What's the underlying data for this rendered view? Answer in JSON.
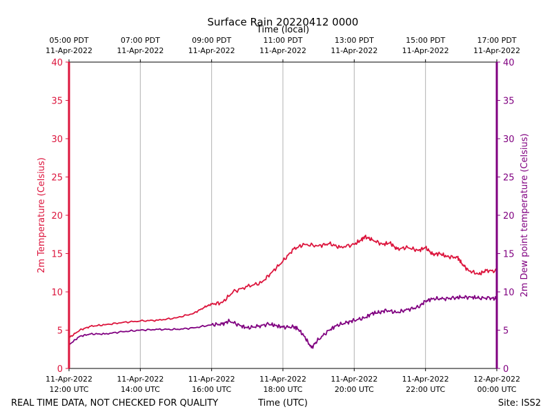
{
  "chart_data": {
    "type": "line",
    "title": "Surface Rain 20220412 0000",
    "xlabel_bottom": "Time (UTC)",
    "xlabel_top": "Time (local)",
    "ylabel_left": "2m Temperature (Celsius)",
    "ylabel_right": "2m Dew point temperature (Celsius)",
    "ylim_left": [
      0,
      40
    ],
    "ylim_right": [
      0,
      40
    ],
    "x_range_hours": [
      12,
      24
    ],
    "y_ticks": [
      "0",
      "5",
      "10",
      "15",
      "20",
      "25",
      "30",
      "35",
      "40"
    ],
    "bottom_ticks": [
      {
        "hour": 12,
        "line1": "11-Apr-2022",
        "line2": "12:00 UTC"
      },
      {
        "hour": 14,
        "line1": "11-Apr-2022",
        "line2": "14:00 UTC"
      },
      {
        "hour": 16,
        "line1": "11-Apr-2022",
        "line2": "16:00 UTC"
      },
      {
        "hour": 18,
        "line1": "11-Apr-2022",
        "line2": "18:00 UTC"
      },
      {
        "hour": 20,
        "line1": "11-Apr-2022",
        "line2": "20:00 UTC"
      },
      {
        "hour": 22,
        "line1": "11-Apr-2022",
        "line2": "22:00 UTC"
      },
      {
        "hour": 24,
        "line1": "12-Apr-2022",
        "line2": "00:00 UTC"
      }
    ],
    "top_ticks": [
      {
        "hour": 12,
        "line1": "05:00 PDT",
        "line2": "11-Apr-2022"
      },
      {
        "hour": 14,
        "line1": "07:00 PDT",
        "line2": "11-Apr-2022"
      },
      {
        "hour": 16,
        "line1": "09:00 PDT",
        "line2": "11-Apr-2022"
      },
      {
        "hour": 18,
        "line1": "11:00 PDT",
        "line2": "11-Apr-2022"
      },
      {
        "hour": 20,
        "line1": "13:00 PDT",
        "line2": "11-Apr-2022"
      },
      {
        "hour": 22,
        "line1": "15:00 PDT",
        "line2": "11-Apr-2022"
      },
      {
        "hour": 24,
        "line1": "17:00 PDT",
        "line2": "11-Apr-2022"
      }
    ],
    "grid": "vertical",
    "series": [
      {
        "name": "2m Temperature",
        "axis": "left",
        "color": "#dc143c",
        "points": [
          [
            12.0,
            4.0
          ],
          [
            12.3,
            5.0
          ],
          [
            12.6,
            5.5
          ],
          [
            13.0,
            5.7
          ],
          [
            13.5,
            6.0
          ],
          [
            14.0,
            6.2
          ],
          [
            14.5,
            6.3
          ],
          [
            15.0,
            6.6
          ],
          [
            15.5,
            7.2
          ],
          [
            15.8,
            8.0
          ],
          [
            16.0,
            8.4
          ],
          [
            16.3,
            8.6
          ],
          [
            16.6,
            10.0
          ],
          [
            17.0,
            10.7
          ],
          [
            17.4,
            11.2
          ],
          [
            17.7,
            12.6
          ],
          [
            18.0,
            14.0
          ],
          [
            18.3,
            15.6
          ],
          [
            18.6,
            16.2
          ],
          [
            19.0,
            16.0
          ],
          [
            19.3,
            16.3
          ],
          [
            19.6,
            15.8
          ],
          [
            20.0,
            16.2
          ],
          [
            20.2,
            16.8
          ],
          [
            20.3,
            17.2
          ],
          [
            20.5,
            16.8
          ],
          [
            20.8,
            16.2
          ],
          [
            21.0,
            16.4
          ],
          [
            21.2,
            15.6
          ],
          [
            21.5,
            15.8
          ],
          [
            21.8,
            15.4
          ],
          [
            22.0,
            15.8
          ],
          [
            22.2,
            14.9
          ],
          [
            22.4,
            15.0
          ],
          [
            22.6,
            14.6
          ],
          [
            22.9,
            14.5
          ],
          [
            23.0,
            13.8
          ],
          [
            23.2,
            12.8
          ],
          [
            23.5,
            12.3
          ],
          [
            23.7,
            12.8
          ],
          [
            24.0,
            12.7
          ]
        ]
      },
      {
        "name": "2m Dew point temperature",
        "axis": "right",
        "color": "#800080",
        "points": [
          [
            12.0,
            3.1
          ],
          [
            12.3,
            4.2
          ],
          [
            12.6,
            4.5
          ],
          [
            13.0,
            4.5
          ],
          [
            13.5,
            4.8
          ],
          [
            14.0,
            5.0
          ],
          [
            14.5,
            5.1
          ],
          [
            15.0,
            5.1
          ],
          [
            15.5,
            5.3
          ],
          [
            16.0,
            5.7
          ],
          [
            16.3,
            5.8
          ],
          [
            16.5,
            6.2
          ],
          [
            16.8,
            5.6
          ],
          [
            17.0,
            5.3
          ],
          [
            17.3,
            5.5
          ],
          [
            17.6,
            5.8
          ],
          [
            17.8,
            5.6
          ],
          [
            18.0,
            5.4
          ],
          [
            18.3,
            5.4
          ],
          [
            18.4,
            5.3
          ],
          [
            18.6,
            4.2
          ],
          [
            18.8,
            2.7
          ],
          [
            19.0,
            3.8
          ],
          [
            19.3,
            5.0
          ],
          [
            19.5,
            5.6
          ],
          [
            19.8,
            6.0
          ],
          [
            20.0,
            6.3
          ],
          [
            20.3,
            6.6
          ],
          [
            20.5,
            7.2
          ],
          [
            20.7,
            7.3
          ],
          [
            20.9,
            7.6
          ],
          [
            21.2,
            7.3
          ],
          [
            21.5,
            7.7
          ],
          [
            21.8,
            8.0
          ],
          [
            22.0,
            8.8
          ],
          [
            22.2,
            9.1
          ],
          [
            22.5,
            9.1
          ],
          [
            22.8,
            9.2
          ],
          [
            23.0,
            9.3
          ],
          [
            23.3,
            9.3
          ],
          [
            23.5,
            9.2
          ],
          [
            23.8,
            9.2
          ],
          [
            24.0,
            9.1
          ]
        ]
      }
    ]
  },
  "footer": {
    "left_note": "REAL TIME DATA, NOT CHECKED FOR QUALITY",
    "site": "Site: ISS2"
  },
  "colors": {
    "left_axis": "#dc143c",
    "right_axis": "#800080",
    "grid": "#b0b0b0"
  }
}
